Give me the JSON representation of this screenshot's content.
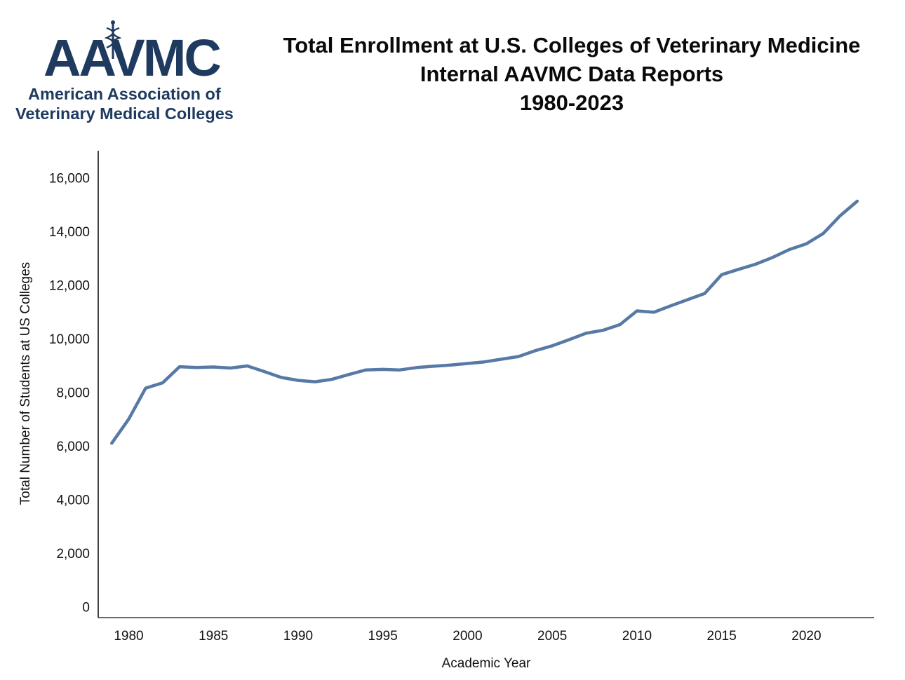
{
  "logo": {
    "mark": "AAVMC",
    "registered": "®",
    "line1": "American Association of",
    "line2": "Veterinary Medical Colleges",
    "color": "#1e3a5f"
  },
  "chart_data": {
    "type": "line",
    "title": "Total Enrollment at U.S. Colleges of Veterinary Medicine",
    "subtitle": "Internal AAVMC Data Reports",
    "subtitle2": "1980-2023",
    "xlabel": "Academic Year",
    "ylabel": "Total Number of Students at US Colleges",
    "xlim": [
      1978.2,
      2024
    ],
    "ylim": [
      -400,
      17000
    ],
    "xticks": [
      1980,
      1985,
      1990,
      1995,
      2000,
      2005,
      2010,
      2015,
      2020
    ],
    "yticks": [
      0,
      2000,
      4000,
      6000,
      8000,
      10000,
      12000,
      14000,
      16000
    ],
    "yticklabels": [
      "0",
      "2,000",
      "4,000",
      "6,000",
      "8,000",
      "10,000",
      "12,000",
      "14,000",
      "16,000"
    ],
    "grid": false,
    "line_color": "#5779a6",
    "x": [
      1979,
      1980,
      1981,
      1982,
      1983,
      1984,
      1985,
      1986,
      1987,
      1988,
      1989,
      1990,
      1991,
      1992,
      1993,
      1994,
      1995,
      1996,
      1997,
      1998,
      1999,
      2000,
      2001,
      2002,
      2003,
      2004,
      2005,
      2006,
      2007,
      2008,
      2009,
      2010,
      2011,
      2012,
      2013,
      2014,
      2015,
      2016,
      2017,
      2018,
      2019,
      2020,
      2021,
      2022,
      2023
    ],
    "series": [
      {
        "values": [
          6100,
          7000,
          8150,
          8350,
          8950,
          8920,
          8940,
          8900,
          8980,
          8770,
          8550,
          8440,
          8390,
          8480,
          8660,
          8830,
          8850,
          8830,
          8920,
          8970,
          9010,
          9070,
          9130,
          9230,
          9330,
          9550,
          9730,
          9960,
          10200,
          10310,
          10520,
          11030,
          10980,
          11220,
          11450,
          11680,
          12380,
          12580,
          12770,
          13020,
          13320,
          13530,
          13920,
          14580,
          15120
        ]
      }
    ]
  }
}
